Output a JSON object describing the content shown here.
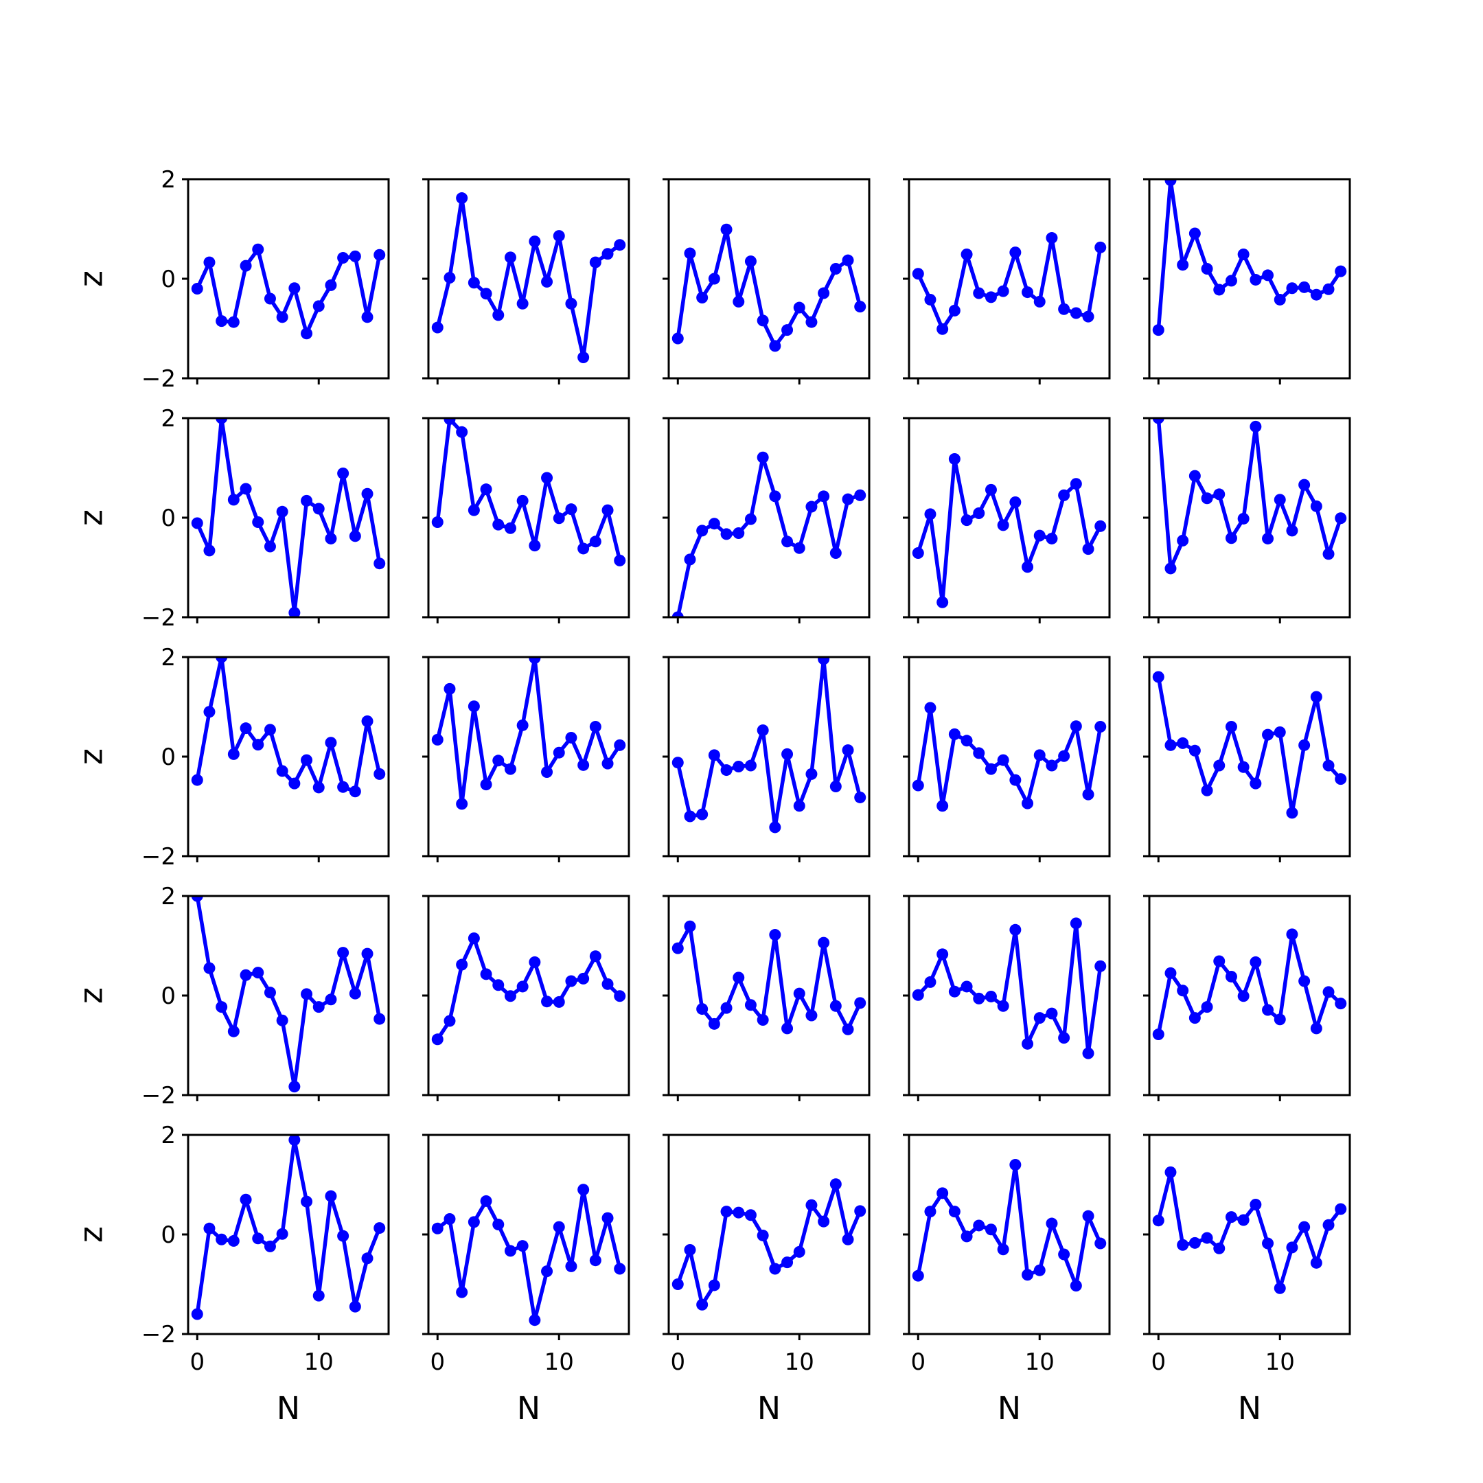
{
  "chart_data": {
    "type": "line",
    "layout": "5x5 grid of subplots, shared axes",
    "xlabel": "N",
    "ylabel": "z",
    "xlim": [
      -0.75,
      15.75
    ],
    "ylim": [
      -2,
      2
    ],
    "xticks": [
      0,
      10
    ],
    "yticks": [
      -2,
      0,
      2
    ],
    "ytick_labels": [
      "−2",
      "0",
      "2"
    ],
    "xtick_labels": [
      "0",
      "10"
    ],
    "line_color": "#0000ff",
    "marker": "circle",
    "grid": false,
    "x": [
      0,
      1,
      2,
      3,
      4,
      5,
      6,
      7,
      8,
      9,
      10,
      11,
      12,
      13,
      14,
      15
    ],
    "panels": [
      {
        "row": 1,
        "col": 1,
        "values": [
          -0.2,
          0.33,
          -0.85,
          -0.87,
          0.26,
          0.59,
          -0.4,
          -0.77,
          -0.19,
          -1.1,
          -0.55,
          -0.13,
          0.42,
          0.45,
          -0.77,
          0.48
        ]
      },
      {
        "row": 1,
        "col": 2,
        "values": [
          -0.98,
          0.02,
          1.62,
          -0.08,
          -0.3,
          -0.73,
          0.43,
          -0.5,
          0.75,
          -0.06,
          0.86,
          -0.5,
          -1.58,
          0.33,
          0.5,
          0.68
        ]
      },
      {
        "row": 1,
        "col": 3,
        "values": [
          -1.2,
          0.51,
          -0.38,
          0.0,
          0.99,
          -0.46,
          0.35,
          -0.84,
          -1.35,
          -1.03,
          -0.58,
          -0.87,
          -0.29,
          0.2,
          0.37,
          -0.56
        ]
      },
      {
        "row": 1,
        "col": 4,
        "values": [
          0.1,
          -0.42,
          -1.01,
          -0.64,
          0.49,
          -0.29,
          -0.37,
          -0.25,
          0.53,
          -0.27,
          -0.46,
          0.82,
          -0.61,
          -0.69,
          -0.76,
          0.63
        ]
      },
      {
        "row": 1,
        "col": 5,
        "values": [
          -1.03,
          1.98,
          0.28,
          0.91,
          0.2,
          -0.22,
          -0.04,
          0.49,
          -0.02,
          0.07,
          -0.42,
          -0.19,
          -0.17,
          -0.32,
          -0.21,
          0.15
        ]
      },
      {
        "row": 2,
        "col": 1,
        "values": [
          -0.11,
          -0.66,
          2.0,
          0.36,
          0.58,
          -0.09,
          -0.58,
          0.12,
          -1.91,
          0.34,
          0.18,
          -0.42,
          0.89,
          -0.37,
          0.48,
          -0.92
        ]
      },
      {
        "row": 2,
        "col": 2,
        "values": [
          -0.09,
          1.98,
          1.72,
          0.15,
          0.57,
          -0.14,
          -0.21,
          0.34,
          -0.56,
          0.8,
          -0.01,
          0.17,
          -0.62,
          -0.48,
          0.15,
          -0.86
        ]
      },
      {
        "row": 2,
        "col": 3,
        "values": [
          -2.0,
          -0.84,
          -0.26,
          -0.12,
          -0.33,
          -0.31,
          -0.03,
          1.21,
          0.43,
          -0.48,
          -0.61,
          0.22,
          0.43,
          -0.71,
          0.37,
          0.45
        ]
      },
      {
        "row": 2,
        "col": 4,
        "values": [
          -0.71,
          0.07,
          -1.7,
          1.18,
          -0.05,
          0.09,
          0.56,
          -0.15,
          0.31,
          -0.99,
          -0.36,
          -0.42,
          0.45,
          0.68,
          -0.63,
          -0.17
        ]
      },
      {
        "row": 2,
        "col": 5,
        "values": [
          2.0,
          -1.02,
          -0.46,
          0.84,
          0.39,
          0.47,
          -0.41,
          -0.02,
          1.83,
          -0.42,
          0.36,
          -0.26,
          0.66,
          0.23,
          -0.73,
          -0.01
        ]
      },
      {
        "row": 3,
        "col": 1,
        "values": [
          -0.47,
          0.9,
          2.0,
          0.05,
          0.57,
          0.24,
          0.54,
          -0.29,
          -0.54,
          -0.07,
          -0.62,
          0.28,
          -0.61,
          -0.7,
          0.71,
          -0.35
        ]
      },
      {
        "row": 3,
        "col": 2,
        "values": [
          0.34,
          1.36,
          -0.95,
          1.01,
          -0.56,
          -0.08,
          -0.25,
          0.63,
          1.98,
          -0.31,
          0.08,
          0.38,
          -0.17,
          0.6,
          -0.14,
          0.23
        ]
      },
      {
        "row": 3,
        "col": 3,
        "values": [
          -0.12,
          -1.2,
          -1.16,
          0.03,
          -0.27,
          -0.2,
          -0.18,
          0.53,
          -1.42,
          0.05,
          -0.99,
          -0.35,
          1.96,
          -0.6,
          0.13,
          -0.82
        ]
      },
      {
        "row": 3,
        "col": 4,
        "values": [
          -0.58,
          0.98,
          -0.99,
          0.45,
          0.32,
          0.07,
          -0.25,
          -0.07,
          -0.47,
          -0.94,
          0.03,
          -0.18,
          0.01,
          0.61,
          -0.76,
          0.6
        ]
      },
      {
        "row": 3,
        "col": 5,
        "values": [
          1.6,
          0.23,
          0.27,
          0.12,
          -0.68,
          -0.18,
          0.6,
          -0.21,
          -0.54,
          0.44,
          0.49,
          -1.13,
          0.23,
          1.2,
          -0.18,
          -0.45
        ]
      },
      {
        "row": 4,
        "col": 1,
        "values": [
          2.0,
          0.55,
          -0.23,
          -0.72,
          0.41,
          0.46,
          0.06,
          -0.5,
          -1.83,
          0.03,
          -0.23,
          -0.08,
          0.86,
          0.04,
          0.84,
          -0.47
        ]
      },
      {
        "row": 4,
        "col": 2,
        "values": [
          -0.88,
          -0.51,
          0.62,
          1.15,
          0.43,
          0.21,
          -0.01,
          0.18,
          0.67,
          -0.12,
          -0.13,
          0.29,
          0.34,
          0.79,
          0.23,
          -0.01
        ]
      },
      {
        "row": 4,
        "col": 3,
        "values": [
          0.95,
          1.39,
          -0.27,
          -0.57,
          -0.25,
          0.36,
          -0.19,
          -0.49,
          1.22,
          -0.66,
          0.04,
          -0.4,
          1.06,
          -0.21,
          -0.68,
          -0.15
        ]
      },
      {
        "row": 4,
        "col": 4,
        "values": [
          0.01,
          0.27,
          0.83,
          0.08,
          0.18,
          -0.06,
          -0.02,
          -0.21,
          1.32,
          -0.97,
          -0.45,
          -0.36,
          -0.85,
          1.45,
          -1.16,
          0.59
        ]
      },
      {
        "row": 4,
        "col": 5,
        "values": [
          -0.78,
          0.45,
          0.1,
          -0.45,
          -0.23,
          0.69,
          0.38,
          -0.01,
          0.67,
          -0.29,
          -0.48,
          1.23,
          0.29,
          -0.66,
          0.07,
          -0.16
        ]
      },
      {
        "row": 5,
        "col": 1,
        "values": [
          -1.6,
          0.12,
          -0.1,
          -0.13,
          0.7,
          -0.08,
          -0.24,
          0.01,
          1.9,
          0.66,
          -1.23,
          0.77,
          -0.03,
          -1.45,
          -0.48,
          0.13
        ]
      },
      {
        "row": 5,
        "col": 2,
        "values": [
          0.12,
          0.31,
          -1.16,
          0.25,
          0.67,
          0.2,
          -0.33,
          -0.23,
          -1.72,
          -0.74,
          0.15,
          -0.64,
          0.9,
          -0.52,
          0.33,
          -0.69
        ]
      },
      {
        "row": 5,
        "col": 3,
        "values": [
          -1.0,
          -0.31,
          -1.41,
          -1.02,
          0.46,
          0.44,
          0.39,
          -0.02,
          -0.69,
          -0.56,
          -0.35,
          0.59,
          0.26,
          1.01,
          -0.1,
          0.47
        ]
      },
      {
        "row": 5,
        "col": 4,
        "values": [
          -0.83,
          0.46,
          0.83,
          0.46,
          -0.04,
          0.18,
          0.1,
          -0.3,
          1.4,
          -0.81,
          -0.72,
          0.22,
          -0.4,
          -1.03,
          0.37,
          -0.18
        ]
      },
      {
        "row": 5,
        "col": 5,
        "values": [
          0.28,
          1.25,
          -0.21,
          -0.17,
          -0.07,
          -0.28,
          0.35,
          0.29,
          0.6,
          -0.18,
          -1.08,
          -0.26,
          0.15,
          -0.57,
          0.19,
          0.51
        ]
      }
    ]
  }
}
